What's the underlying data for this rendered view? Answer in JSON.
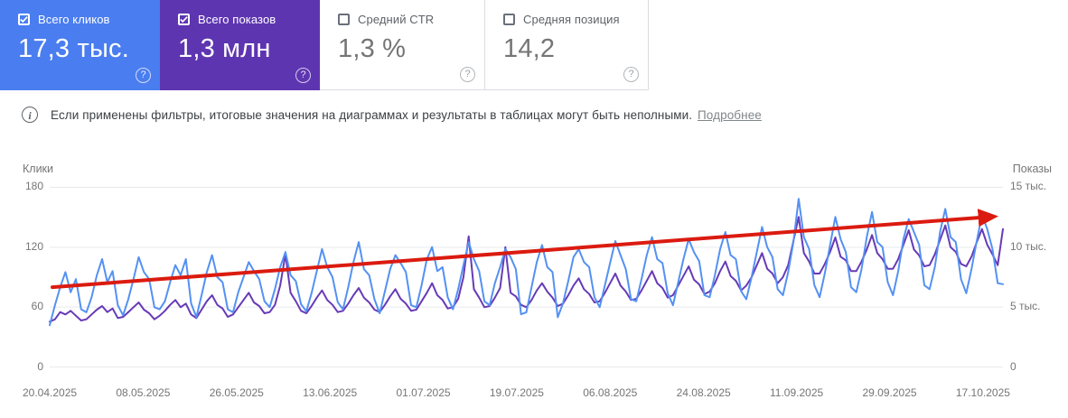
{
  "cards": [
    {
      "label": "Всего кликов",
      "value": "17,3 тыс.",
      "checked": true,
      "color": "#4a7df0",
      "help": "?"
    },
    {
      "label": "Всего показов",
      "value": "1,3 млн",
      "checked": true,
      "color": "#5e35b1",
      "help": "?"
    },
    {
      "label": "Средний CTR",
      "value": "1,3 %",
      "checked": false,
      "color": "",
      "help": "?"
    },
    {
      "label": "Средняя позиция",
      "value": "14,2",
      "checked": false,
      "color": "",
      "help": "?"
    }
  ],
  "info_banner": {
    "icon": "i",
    "text": "Если применены фильтры, итоговые значения на диаграммах и результаты в таблицах могут быть неполными.",
    "link": "Подробнее"
  },
  "chart_data": {
    "type": "line",
    "grid": true,
    "left_axis": {
      "label": "Клики",
      "ticks": [
        "180",
        "120",
        "60",
        "0"
      ],
      "range": [
        0,
        180
      ]
    },
    "right_axis": {
      "label": "Показы",
      "ticks": [
        "15 тыс.",
        "10 тыс.",
        "5 тыс.",
        "0"
      ],
      "range": [
        0,
        15
      ],
      "units": "тыс."
    },
    "x_ticks": [
      "20.04.2025",
      "08.05.2025",
      "26.05.2025",
      "13.06.2025",
      "01.07.2025",
      "19.07.2025",
      "06.08.2025",
      "24.08.2025",
      "11.09.2025",
      "29.09.2025",
      "17.10.2025"
    ],
    "series": [
      {
        "name": "Всего кликов",
        "axis": "left",
        "color": "#5491f2",
        "values": [
          42,
          62,
          80,
          95,
          75,
          88,
          58,
          55,
          70,
          92,
          108,
          85,
          96,
          62,
          52,
          68,
          88,
          110,
          95,
          88,
          60,
          58,
          66,
          85,
          102,
          92,
          108,
          64,
          50,
          72,
          95,
          112,
          90,
          85,
          58,
          55,
          75,
          90,
          105,
          96,
          88,
          66,
          60,
          78,
          100,
          115,
          92,
          86,
          63,
          56,
          74,
          96,
          118,
          100,
          90,
          65,
          58,
          80,
          105,
          125,
          98,
          92,
          68,
          54,
          76,
          98,
          112,
          104,
          95,
          62,
          60,
          82,
          108,
          120,
          96,
          100,
          70,
          58,
          78,
          102,
          125,
          108,
          96,
          66,
          62,
          84,
          100,
          118,
          110,
          98,
          53,
          55,
          80,
          105,
          122,
          100,
          95,
          50,
          64,
          86,
          110,
          118,
          105,
          100,
          70,
          60,
          82,
          104,
          126,
          112,
          98,
          68,
          66,
          88,
          112,
          130,
          108,
          104,
          74,
          62,
          85,
          108,
          128,
          115,
          106,
          72,
          70,
          92,
          118,
          135,
          112,
          108,
          76,
          68,
          90,
          115,
          140,
          120,
          110,
          78,
          72,
          95,
          125,
          168,
          130,
          118,
          82,
          70,
          94,
          122,
          150,
          128,
          115,
          80,
          75,
          98,
          130,
          155,
          125,
          120,
          85,
          72,
          96,
          128,
          148,
          135,
          122,
          82,
          78,
          100,
          135,
          158,
          130,
          125,
          88,
          74,
          98,
          126,
          152,
          138,
          118,
          84,
          83
        ]
      },
      {
        "name": "Всего показов (тыс.)",
        "axis": "right",
        "color": "#673ab7",
        "values": [
          3.8,
          4.0,
          4.6,
          4.4,
          4.7,
          4.3,
          3.9,
          4.0,
          4.4,
          4.8,
          5.1,
          4.6,
          4.9,
          4.1,
          4.2,
          4.6,
          5.0,
          5.4,
          4.8,
          4.5,
          4.0,
          4.3,
          4.7,
          5.2,
          5.6,
          5.0,
          5.3,
          4.4,
          4.1,
          4.8,
          5.5,
          6.0,
          5.2,
          4.9,
          4.2,
          4.4,
          5.0,
          5.6,
          6.2,
          5.4,
          5.1,
          4.5,
          4.6,
          5.2,
          6.8,
          9.4,
          6.2,
          5.5,
          4.7,
          4.5,
          5.1,
          5.8,
          6.4,
          5.6,
          5.2,
          4.6,
          4.7,
          5.3,
          6.0,
          6.6,
          5.8,
          5.4,
          4.8,
          4.6,
          5.2,
          5.9,
          6.5,
          5.7,
          5.3,
          4.7,
          4.8,
          5.5,
          6.2,
          7.0,
          6.0,
          5.6,
          4.9,
          5.0,
          5.7,
          7.5,
          10.9,
          6.5,
          5.8,
          5.0,
          5.1,
          5.8,
          6.6,
          10.0,
          6.2,
          5.9,
          5.2,
          5.0,
          5.6,
          6.4,
          7.0,
          6.3,
          5.8,
          5.1,
          5.3,
          6.0,
          6.8,
          7.4,
          6.5,
          6.1,
          5.4,
          5.5,
          6.2,
          7.0,
          7.8,
          6.8,
          6.3,
          5.6,
          5.7,
          6.4,
          7.2,
          8.0,
          7.0,
          6.6,
          5.8,
          6.0,
          6.8,
          7.6,
          8.4,
          7.3,
          6.9,
          6.1,
          6.3,
          7.0,
          8.0,
          8.8,
          7.6,
          7.2,
          6.4,
          6.8,
          7.5,
          8.5,
          9.5,
          8.2,
          7.8,
          7.0,
          7.5,
          8.5,
          10.5,
          12.5,
          9.5,
          8.8,
          7.8,
          7.8,
          8.6,
          9.6,
          10.8,
          9.2,
          8.9,
          8.0,
          8.0,
          8.8,
          9.8,
          11.0,
          9.5,
          9.0,
          8.2,
          8.2,
          9.0,
          10.2,
          11.4,
          9.8,
          9.3,
          8.4,
          8.5,
          9.4,
          10.6,
          11.8,
          10.0,
          9.6,
          8.6,
          8.4,
          9.2,
          10.4,
          11.5,
          10.2,
          9.4,
          8.5,
          11.5
        ]
      }
    ],
    "trend_annotation": {
      "type": "arrow",
      "color": "#db1b10",
      "start_clicks": 80,
      "end_clicks": 151
    }
  }
}
